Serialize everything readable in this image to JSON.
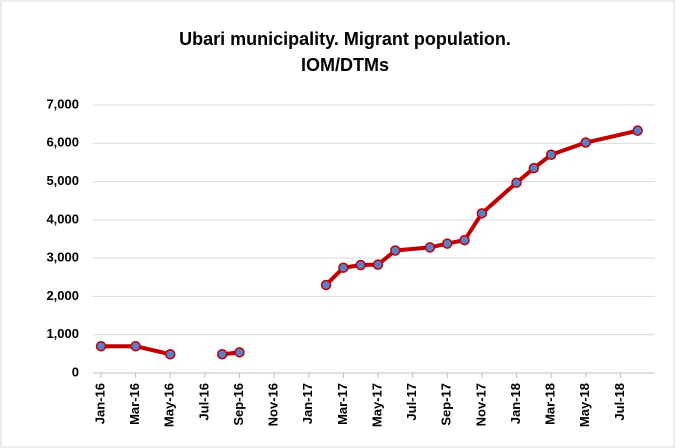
{
  "chart_data": {
    "type": "line",
    "title": [
      "Ubari municipality.  Migrant population.",
      "IOM/DTMs"
    ],
    "x": [
      "2016-01",
      "2016-03",
      "2016-05",
      "2016-07",
      "2016-08",
      "2016-09",
      "2016-12",
      "2017-02",
      "2017-03",
      "2017-04",
      "2017-05",
      "2017-06",
      "2017-08",
      "2017-09",
      "2017-10",
      "2017-11",
      "2018-01",
      "2018-02",
      "2018-03",
      "2018-05",
      "2018-08"
    ],
    "series": [
      {
        "name": "Migrant population",
        "color": "#c00000",
        "marker_color": "#5b7fc7",
        "values": [
          700,
          700,
          490,
          null,
          490,
          540,
          null,
          2300,
          2750,
          2820,
          2830,
          3200,
          3280,
          3380,
          3470,
          4170,
          4970,
          5350,
          5700,
          6020,
          6330
        ]
      }
    ],
    "xlim": [
      "2016-01",
      "2018-09"
    ],
    "xticks": [
      {
        "value": "2016-01",
        "label": "Jan-16"
      },
      {
        "value": "2016-03",
        "label": "Mar-16"
      },
      {
        "value": "2016-05",
        "label": "May-16"
      },
      {
        "value": "2016-07",
        "label": "Jul-16"
      },
      {
        "value": "2016-09",
        "label": "Sep-16"
      },
      {
        "value": "2016-11",
        "label": "Nov-16"
      },
      {
        "value": "2017-01",
        "label": "Jan-17"
      },
      {
        "value": "2017-03",
        "label": "Mar-17"
      },
      {
        "value": "2017-05",
        "label": "May-17"
      },
      {
        "value": "2017-07",
        "label": "Jul-17"
      },
      {
        "value": "2017-09",
        "label": "Sep-17"
      },
      {
        "value": "2017-11",
        "label": "Nov-17"
      },
      {
        "value": "2018-01",
        "label": "Jan-18"
      },
      {
        "value": "2018-03",
        "label": "Mar-18"
      },
      {
        "value": "2018-05",
        "label": "May-18"
      },
      {
        "value": "2018-07",
        "label": "Jul-18"
      }
    ],
    "ylim": [
      0,
      7000
    ],
    "yticks": [
      0,
      {
        "value": 1000,
        "label": "1,000"
      },
      {
        "value": 2000,
        "label": "2,000"
      },
      {
        "value": 3000,
        "label": "3,000"
      },
      {
        "value": 4000,
        "label": "4,000"
      },
      {
        "value": 5000,
        "label": "5,000"
      },
      {
        "value": 6000,
        "label": "6,000"
      },
      {
        "value": 7000,
        "label": "7,000"
      }
    ],
    "grid": true
  }
}
